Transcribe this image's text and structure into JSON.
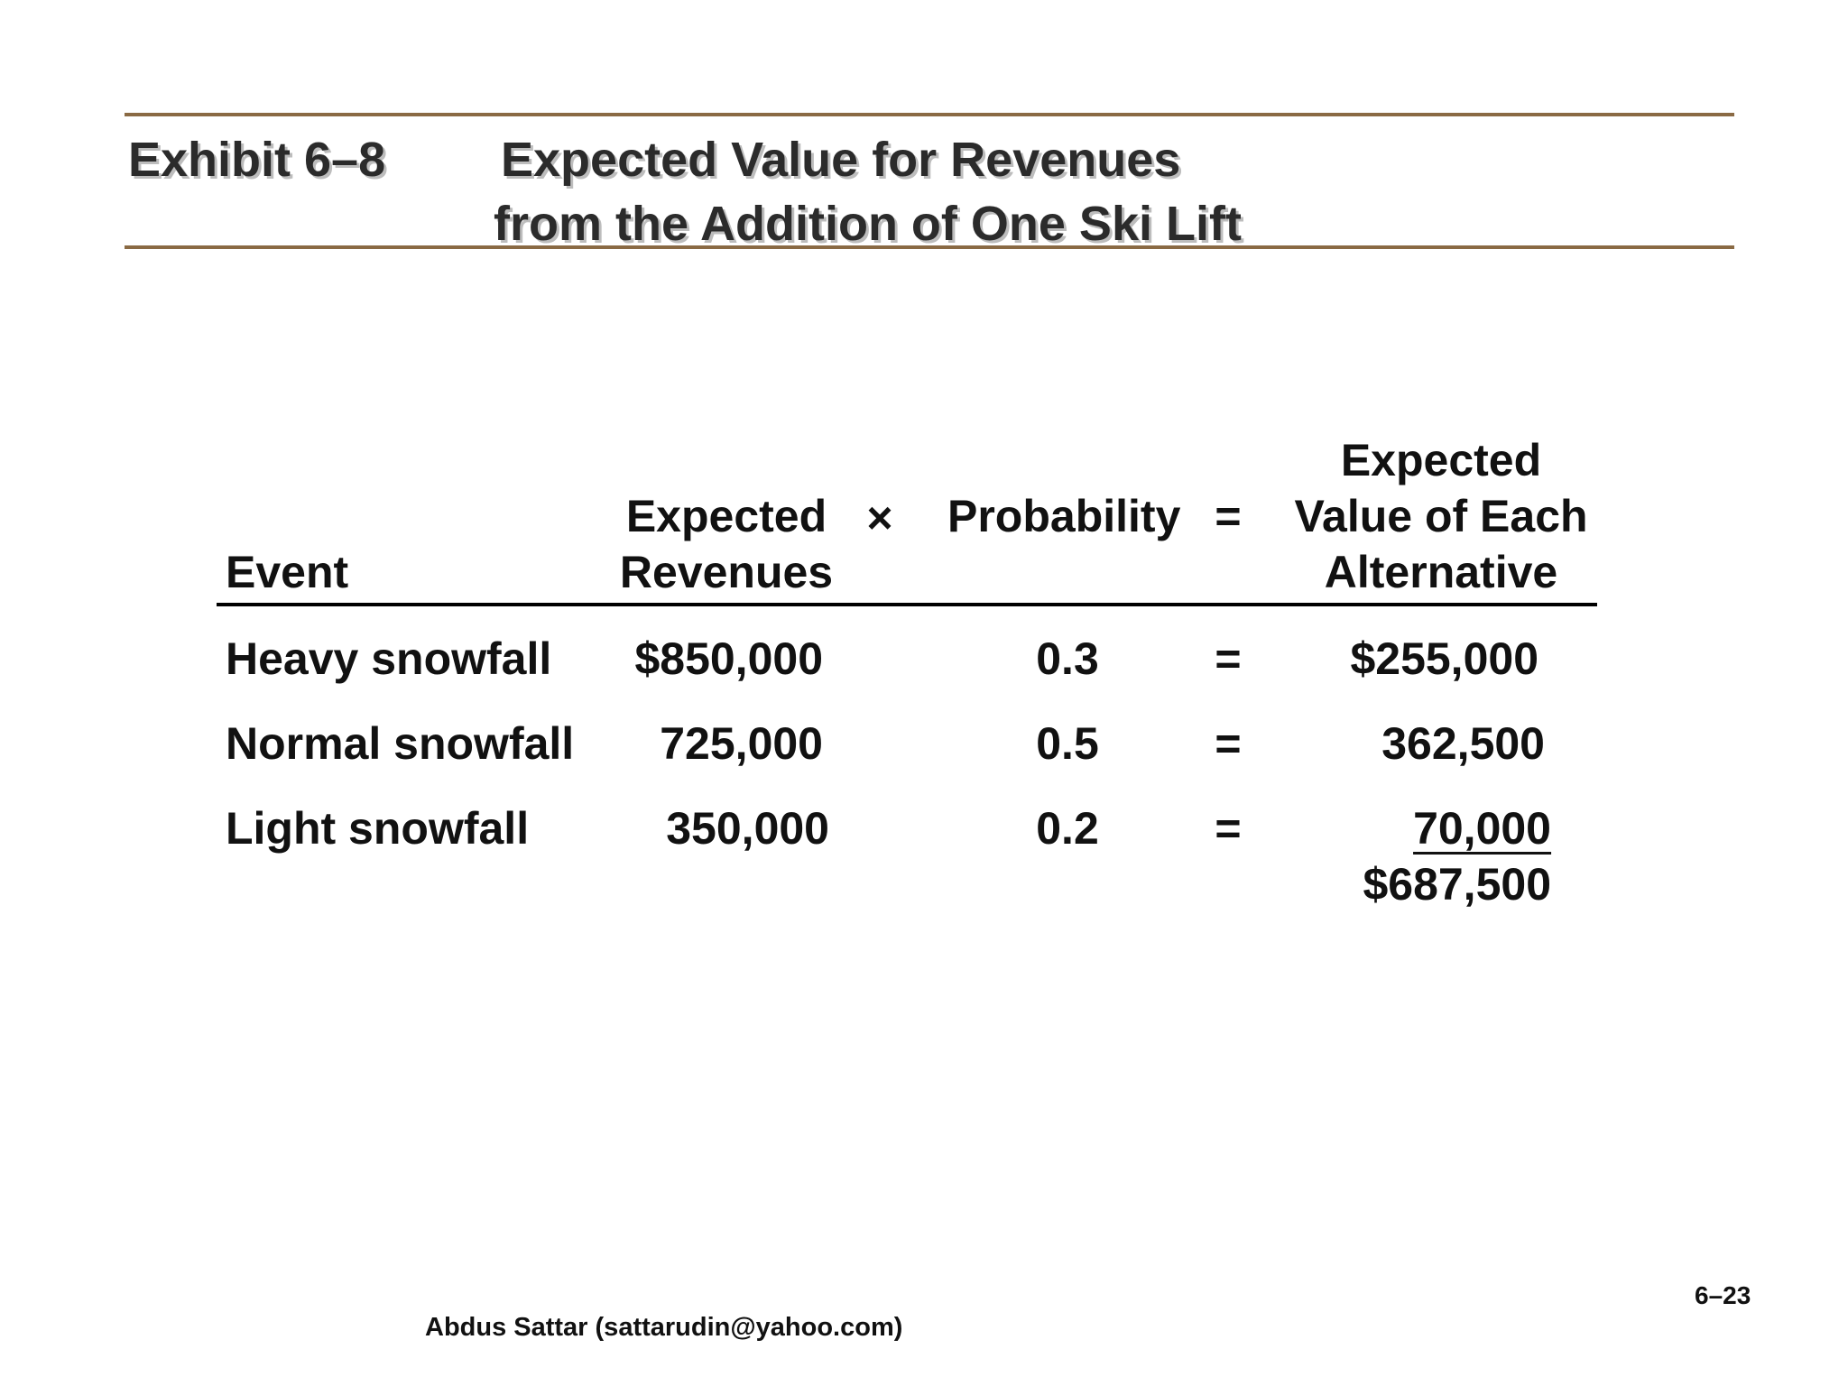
{
  "exhibit": {
    "label": "Exhibit 6–8",
    "title_line1": "Expected Value for Revenues",
    "title_line2": "from the Addition of One Ski Lift"
  },
  "table": {
    "headers": {
      "event": "Event",
      "expected_line1": "Expected",
      "expected_line2": "Revenues",
      "times": "×",
      "probability": "Probability",
      "equals": "=",
      "ev_line1": "Expected",
      "ev_line2": "Value of Each",
      "ev_line3": "Alternative"
    },
    "rows": [
      {
        "event": "Heavy snowfall",
        "revenue": "$850,000",
        "probability": "0.3",
        "equals": "=",
        "value": "$255,000"
      },
      {
        "event": "Normal snowfall",
        "revenue": "725,000",
        "probability": "0.5",
        "equals": "=",
        "value": "362,500"
      },
      {
        "event": "Light snowfall",
        "revenue": "350,000",
        "probability": "0.2",
        "equals": "=",
        "value": "70,000"
      }
    ],
    "total": "$687,500"
  },
  "footer": {
    "page_number": "6–23",
    "author": "Abdus Sattar (sattarudin@yahoo.com)"
  },
  "colors": {
    "rule": "#8a6a44",
    "title_shadow": "#bdbdbd"
  }
}
